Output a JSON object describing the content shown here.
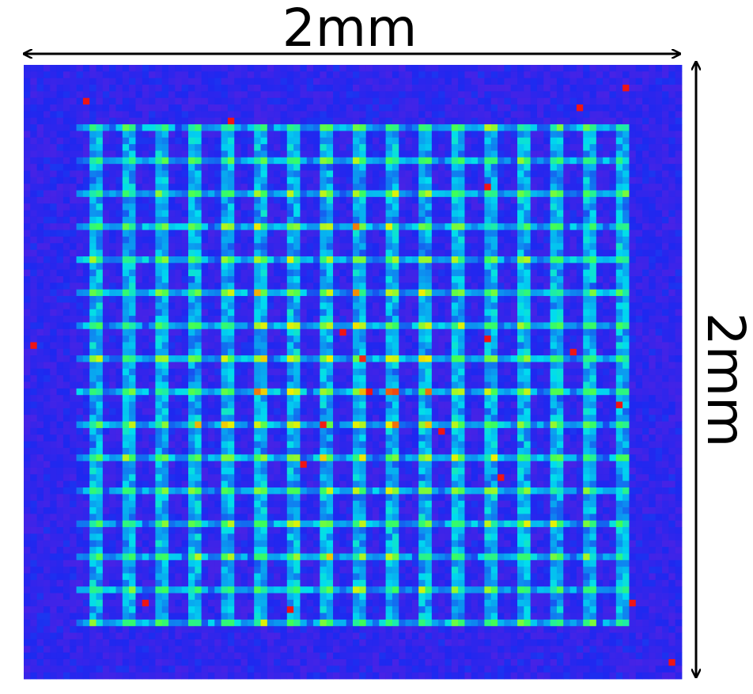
{
  "labels": {
    "width": "2mm",
    "height": "2mm"
  }
}
